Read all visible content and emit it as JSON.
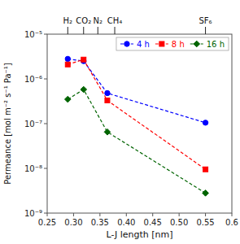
{
  "chart_data": {
    "type": "line",
    "xlabel": "L-J length [nm]",
    "ylabel": "Permeance [mol m⁻² s⁻¹ Pa⁻¹]",
    "log": "y",
    "legend": "upper right",
    "xlim": [
      0.25,
      0.6
    ],
    "xticks": [
      0.25,
      {
        "value": 0.3,
        "label": "0.30"
      },
      0.35,
      {
        "value": 0.4,
        "label": "0.40"
      },
      0.45,
      {
        "value": 0.5,
        "label": "0.50"
      },
      0.55,
      0.6
    ],
    "ylim": [
      1e-09,
      1e-05
    ],
    "yticks": [
      {
        "value": 1e-09,
        "label": "10⁻⁹"
      },
      {
        "value": 1e-08,
        "label": "10⁻⁸"
      },
      {
        "value": 1e-07,
        "label": "10⁻⁷"
      },
      {
        "value": 1e-06,
        "label": "10⁻⁶"
      },
      {
        "value": 1e-05,
        "label": "10⁻⁵"
      }
    ],
    "x2ticks": [
      {
        "value": 0.289,
        "label": "H₂"
      },
      {
        "value": 0.319,
        "label": "CO₂"
      },
      {
        "value": 0.346,
        "label": "N₂"
      },
      {
        "value": 0.378,
        "label": "CH₄"
      },
      {
        "value": 0.55,
        "label": "SF₆"
      }
    ],
    "series": [
      {
        "name": "4 h",
        "color": "#0000ff",
        "marker": "circle",
        "line_style": "dashed",
        "x": [
          0.289,
          0.319,
          0.364,
          0.55
        ],
        "values": [
          2.8e-06,
          2.5e-06,
          4.8e-07,
          1.05e-07
        ]
      },
      {
        "name": "8 h",
        "color": "#ff0000",
        "marker": "square",
        "line_style": "dashed",
        "x": [
          0.289,
          0.319,
          0.364,
          0.55
        ],
        "values": [
          2.1e-06,
          2.7e-06,
          3.3e-07,
          9.5e-09
        ]
      },
      {
        "name": "16 h",
        "color": "#006400",
        "marker": "diamond",
        "line_style": "dashed",
        "x": [
          0.289,
          0.319,
          0.364,
          0.55
        ],
        "values": [
          3.5e-07,
          5.8e-07,
          6.5e-08,
          2.8e-09
        ]
      }
    ]
  }
}
